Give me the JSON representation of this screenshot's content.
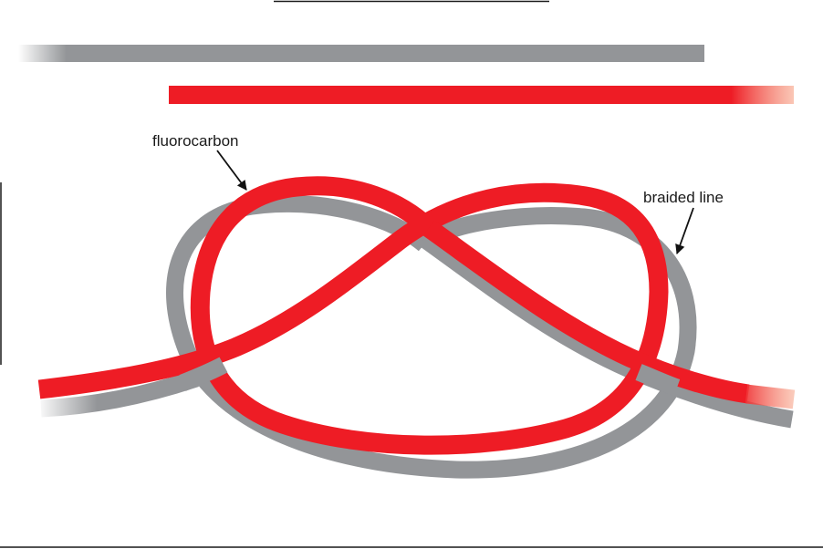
{
  "diagram": {
    "labels": {
      "fluorocarbon": "fluorocarbon",
      "braided_line": "braided line"
    },
    "colors": {
      "fluorocarbon": "#ee1c25",
      "fluorocarbon_fade": "#f7a184",
      "braided_line": "#939598",
      "braided_line_fade": "#dcdcdc",
      "frame": "#1a1a1a",
      "arrow": "#111111"
    },
    "icons": {
      "callout_arrow": "arrow-icon"
    }
  }
}
